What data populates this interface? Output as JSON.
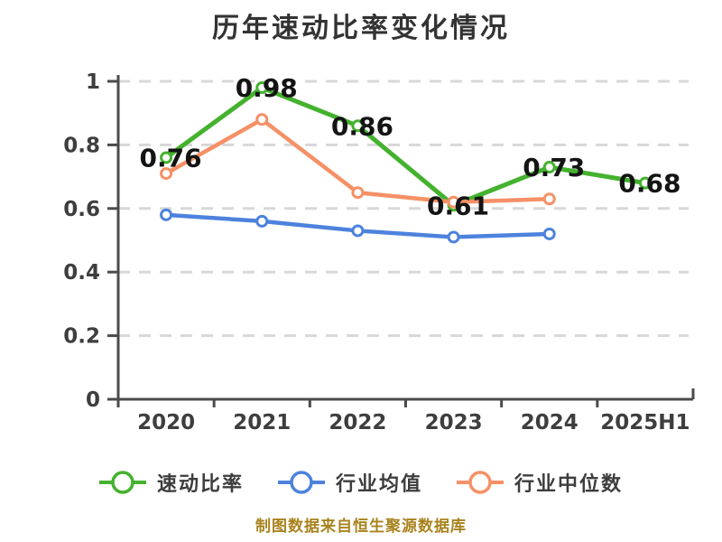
{
  "title": "历年速动比率变化情况",
  "footer": "制图数据来自恒生聚源数据库",
  "colors": {
    "quick_ratio": "#44b22e",
    "industry_average": "#4d82dd",
    "industry_median": "#f69066",
    "grid": "#d8d8d8",
    "axis": "#4b4b4b",
    "tick_text": "#3e3e3e",
    "value_label": "#141414",
    "footer_text": "#a8831d",
    "marker_fill": "#ffffff",
    "background": "#ffffff"
  },
  "chart_data": {
    "type": "line",
    "title": "历年速动比率变化情况",
    "categories": [
      "2020",
      "2021",
      "2022",
      "2023",
      "2024",
      "2025H1"
    ],
    "series": [
      {
        "key": "quick-ratio",
        "name": "速动比率",
        "color_key": "quick_ratio",
        "values": [
          0.76,
          0.98,
          0.86,
          0.61,
          0.73,
          0.68
        ],
        "point_labels": [
          "0.76",
          "0.98",
          "0.86",
          "0.61",
          "0.73",
          "0.68"
        ],
        "labeled": true
      },
      {
        "key": "industry-average",
        "name": "行业均值",
        "color_key": "industry_average",
        "values": [
          0.58,
          0.56,
          0.53,
          0.51,
          0.52,
          null
        ],
        "labeled": false
      },
      {
        "key": "industry-median",
        "name": "行业中位数",
        "color_key": "industry_median",
        "values": [
          0.71,
          0.88,
          0.65,
          0.62,
          0.63,
          null
        ],
        "labeled": false
      }
    ],
    "xlabel": "",
    "ylabel": "",
    "ylim": [
      0,
      1
    ],
    "yticks": [
      0,
      0.2,
      0.4,
      0.6,
      0.8,
      1
    ],
    "ytick_labels": [
      "0",
      "0.2",
      "0.4",
      "0.6",
      "0.8",
      "1"
    ],
    "grid": true,
    "grid_style": "dashed",
    "legend_position": "bottom"
  }
}
